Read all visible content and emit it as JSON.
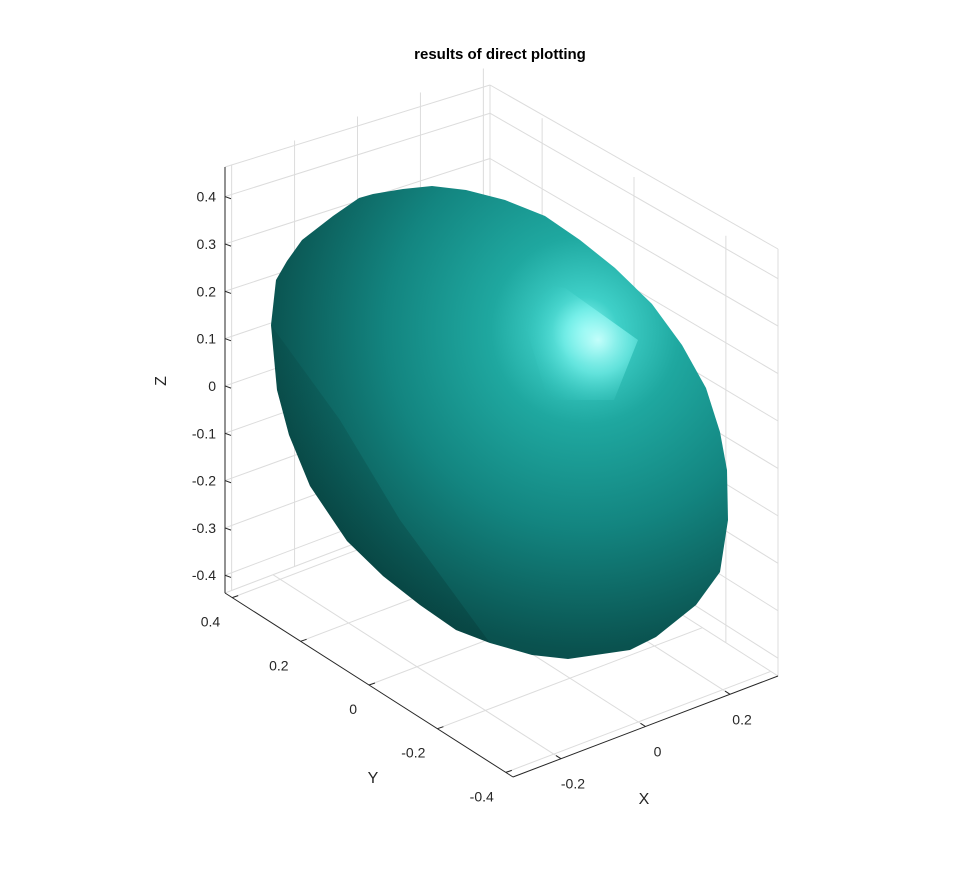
{
  "chart_data": {
    "type": "surface",
    "title": "results of direct plotting",
    "xlabel": "X",
    "ylabel": "Y",
    "zlabel": "Z",
    "x_ticks": [
      "-0.2",
      "0",
      "0.2"
    ],
    "y_ticks": [
      "0.4",
      "0.2",
      "0",
      "-0.2",
      "-0.4"
    ],
    "z_ticks": [
      "0.4",
      "0.3",
      "0.2",
      "0.1",
      "0",
      "-0.1",
      "-0.2",
      "-0.3",
      "-0.4"
    ],
    "grid": true,
    "surface": {
      "shape": "ellipsoid",
      "face_color": "#1a9e96",
      "shadow_color": "#073b3a",
      "highlight_color": "#7ff8f4"
    }
  }
}
